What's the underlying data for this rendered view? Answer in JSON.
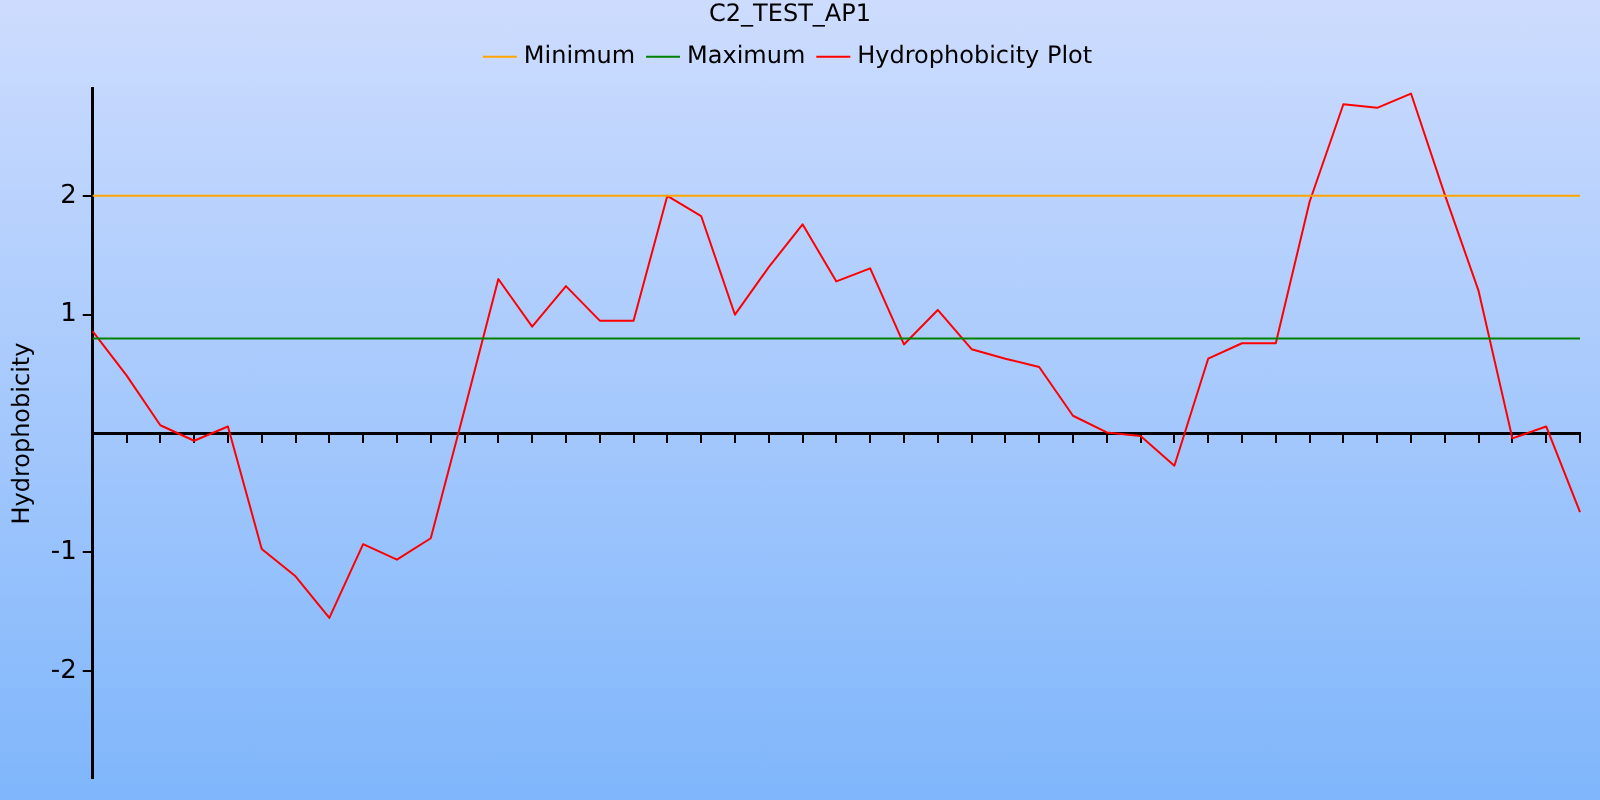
{
  "chart_data": {
    "type": "line",
    "title": "C2_TEST_AP1",
    "ylabel": "Hydrophobicity",
    "categories": [
      null,
      null,
      null,
      null,
      null,
      null,
      null,
      null,
      null,
      null,
      null,
      null,
      null,
      null,
      null,
      null,
      null,
      null,
      null,
      null,
      null,
      null,
      null,
      null,
      null,
      null,
      null,
      null,
      null,
      null,
      null,
      null,
      null,
      null,
      null,
      null,
      null,
      null,
      null,
      null,
      null,
      null,
      null,
      null,
      null
    ],
    "series": [
      {
        "name": "Minimum",
        "color": "#ffa500",
        "values": [
          2,
          2,
          2,
          2,
          2,
          2,
          2,
          2,
          2,
          2,
          2,
          2,
          2,
          2,
          2,
          2,
          2,
          2,
          2,
          2,
          2,
          2,
          2,
          2,
          2,
          2,
          2,
          2,
          2,
          2,
          2,
          2,
          2,
          2,
          2,
          2,
          2,
          2,
          2,
          2,
          2,
          2,
          2,
          2,
          2
        ]
      },
      {
        "name": "Maximum",
        "color": "#008000",
        "values": [
          0.8,
          0.8,
          0.8,
          0.8,
          0.8,
          0.8,
          0.8,
          0.8,
          0.8,
          0.8,
          0.8,
          0.8,
          0.8,
          0.8,
          0.8,
          0.8,
          0.8,
          0.8,
          0.8,
          0.8,
          0.8,
          0.8,
          0.8,
          0.8,
          0.8,
          0.8,
          0.8,
          0.8,
          0.8,
          0.8,
          0.8,
          0.8,
          0.8,
          0.8,
          0.8,
          0.8,
          0.8,
          0.8,
          0.8,
          0.8,
          0.8,
          0.8,
          0.8,
          0.8,
          0.8
        ]
      },
      {
        "name": "Hydrophobicity Plot",
        "color": "#ff0000",
        "values": [
          0.86,
          0.49,
          0.07,
          -0.06,
          0.06,
          -0.97,
          -1.2,
          -1.55,
          -0.93,
          -1.06,
          -0.88,
          0.2,
          1.3,
          0.9,
          1.24,
          0.95,
          0.95,
          2.0,
          1.83,
          1.0,
          1.4,
          1.76,
          1.28,
          1.39,
          0.75,
          1.04,
          0.71,
          0.63,
          0.56,
          0.15,
          0.01,
          -0.02,
          -0.27,
          0.63,
          0.76,
          0.76,
          1.95,
          2.77,
          2.74,
          2.86,
          2.01,
          1.2,
          -0.04,
          0.06,
          -0.66
        ]
      }
    ],
    "ylim": [
      -2.9,
      2.9
    ],
    "yticks": [
      -2,
      -1,
      1,
      2
    ],
    "grid": false,
    "legend": "top",
    "marker": "none",
    "line_style": "solid"
  }
}
